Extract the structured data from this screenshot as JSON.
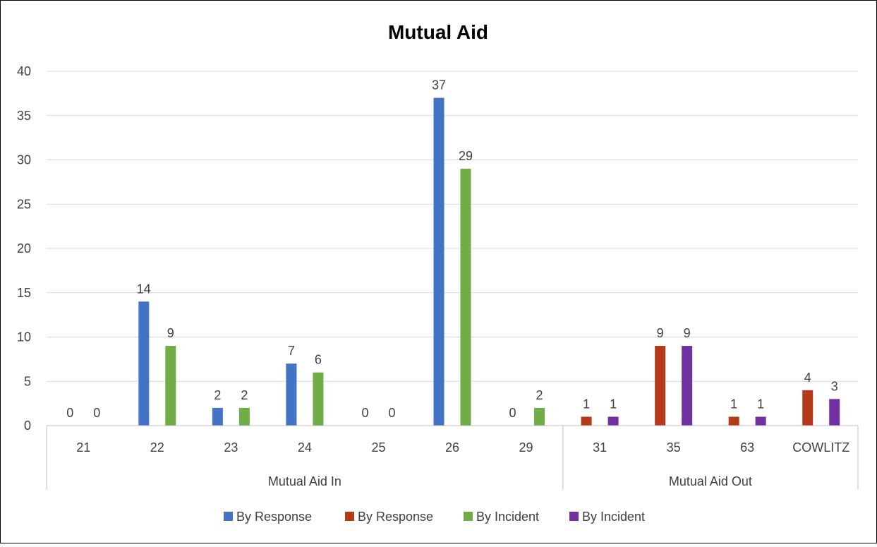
{
  "chart_data": {
    "type": "bar",
    "title": "Mutual Aid",
    "xlabel": "",
    "ylabel": "",
    "ylim": [
      0,
      40
    ],
    "y_ticks": [
      0,
      5,
      10,
      15,
      20,
      25,
      30,
      35,
      40
    ],
    "grid": true,
    "legend_position": "bottom",
    "groups": [
      {
        "name": "Mutual Aid In",
        "categories": [
          "21",
          "22",
          "23",
          "24",
          "25",
          "26",
          "29"
        ]
      },
      {
        "name": "Mutual Aid Out",
        "categories": [
          "31",
          "35",
          "63",
          "COWLITZ"
        ]
      }
    ],
    "series": [
      {
        "name": "By Response",
        "group": "Mutual Aid In",
        "color": "#4472C4",
        "values": [
          0,
          14,
          2,
          7,
          0,
          37,
          0
        ]
      },
      {
        "name": "By Response",
        "group": "Mutual Aid Out",
        "color": "#B5391A",
        "values": [
          1,
          9,
          1,
          4
        ]
      },
      {
        "name": "By Incident",
        "group": "Mutual Aid In",
        "color": "#70AD47",
        "values": [
          0,
          9,
          2,
          6,
          0,
          29,
          2
        ]
      },
      {
        "name": "By Incident",
        "group": "Mutual Aid Out",
        "color": "#7030A0",
        "values": [
          1,
          9,
          1,
          3
        ]
      }
    ]
  }
}
